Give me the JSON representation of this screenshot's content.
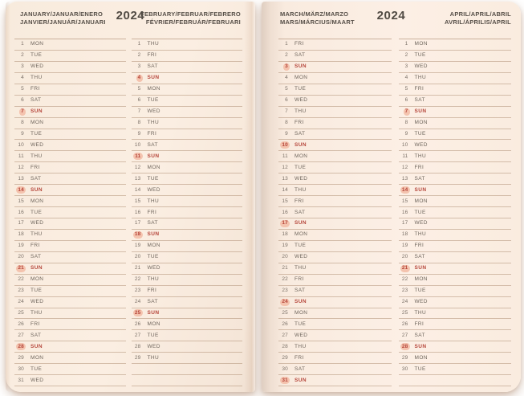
{
  "year": "2024",
  "grid_rows": 31,
  "colors": {
    "page_background": "#fbeee2",
    "ruled_line": "#c3a78f",
    "day_text": "#6e655c",
    "header_text": "#564f48",
    "sunday_red": "#b5453a",
    "sunday_pill": "#f4c3ae"
  },
  "months": [
    {
      "name": "january",
      "title_line1": "JANUARY/JANUAR/ENERO",
      "title_line2": "JANVIER/JANUÁR/JANUARI",
      "days": [
        {
          "n": "1",
          "d": "MON"
        },
        {
          "n": "2",
          "d": "TUE"
        },
        {
          "n": "3",
          "d": "WED"
        },
        {
          "n": "4",
          "d": "THU"
        },
        {
          "n": "5",
          "d": "FRI"
        },
        {
          "n": "6",
          "d": "SAT"
        },
        {
          "n": "7",
          "d": "SUN"
        },
        {
          "n": "8",
          "d": "MON"
        },
        {
          "n": "9",
          "d": "TUE"
        },
        {
          "n": "10",
          "d": "WED"
        },
        {
          "n": "11",
          "d": "THU"
        },
        {
          "n": "12",
          "d": "FRI"
        },
        {
          "n": "13",
          "d": "SAT"
        },
        {
          "n": "14",
          "d": "SUN"
        },
        {
          "n": "15",
          "d": "MON"
        },
        {
          "n": "16",
          "d": "TUE"
        },
        {
          "n": "17",
          "d": "WED"
        },
        {
          "n": "18",
          "d": "THU"
        },
        {
          "n": "19",
          "d": "FRI"
        },
        {
          "n": "20",
          "d": "SAT"
        },
        {
          "n": "21",
          "d": "SUN"
        },
        {
          "n": "22",
          "d": "MON"
        },
        {
          "n": "23",
          "d": "TUE"
        },
        {
          "n": "24",
          "d": "WED"
        },
        {
          "n": "25",
          "d": "THU"
        },
        {
          "n": "26",
          "d": "FRI"
        },
        {
          "n": "27",
          "d": "SAT"
        },
        {
          "n": "28",
          "d": "SUN"
        },
        {
          "n": "29",
          "d": "MON"
        },
        {
          "n": "30",
          "d": "TUE"
        },
        {
          "n": "31",
          "d": "WED"
        }
      ]
    },
    {
      "name": "february",
      "title_line1": "FEBRUARY/FEBRUAR/FEBRERO",
      "title_line2": "FÉVRIER/FEBRUÁR/FEBRUARI",
      "days": [
        {
          "n": "1",
          "d": "THU"
        },
        {
          "n": "2",
          "d": "FRI"
        },
        {
          "n": "3",
          "d": "SAT"
        },
        {
          "n": "4",
          "d": "SUN"
        },
        {
          "n": "5",
          "d": "MON"
        },
        {
          "n": "6",
          "d": "TUE"
        },
        {
          "n": "7",
          "d": "WED"
        },
        {
          "n": "8",
          "d": "THU"
        },
        {
          "n": "9",
          "d": "FRI"
        },
        {
          "n": "10",
          "d": "SAT"
        },
        {
          "n": "11",
          "d": "SUN"
        },
        {
          "n": "12",
          "d": "MON"
        },
        {
          "n": "13",
          "d": "TUE"
        },
        {
          "n": "14",
          "d": "WED"
        },
        {
          "n": "15",
          "d": "THU"
        },
        {
          "n": "16",
          "d": "FRI"
        },
        {
          "n": "17",
          "d": "SAT"
        },
        {
          "n": "18",
          "d": "SUN"
        },
        {
          "n": "19",
          "d": "MON"
        },
        {
          "n": "20",
          "d": "TUE"
        },
        {
          "n": "21",
          "d": "WED"
        },
        {
          "n": "22",
          "d": "THU"
        },
        {
          "n": "23",
          "d": "FRI"
        },
        {
          "n": "24",
          "d": "SAT"
        },
        {
          "n": "25",
          "d": "SUN"
        },
        {
          "n": "26",
          "d": "MON"
        },
        {
          "n": "27",
          "d": "TUE"
        },
        {
          "n": "28",
          "d": "WED"
        },
        {
          "n": "29",
          "d": "THU"
        }
      ]
    },
    {
      "name": "march",
      "title_line1": "MARCH/MÄRZ/MARZO",
      "title_line2": "MARS/MÁRCIUS/MAART",
      "days": [
        {
          "n": "1",
          "d": "FRI"
        },
        {
          "n": "2",
          "d": "SAT"
        },
        {
          "n": "3",
          "d": "SUN"
        },
        {
          "n": "4",
          "d": "MON"
        },
        {
          "n": "5",
          "d": "TUE"
        },
        {
          "n": "6",
          "d": "WED"
        },
        {
          "n": "7",
          "d": "THU"
        },
        {
          "n": "8",
          "d": "FRI"
        },
        {
          "n": "9",
          "d": "SAT"
        },
        {
          "n": "10",
          "d": "SUN"
        },
        {
          "n": "11",
          "d": "MON"
        },
        {
          "n": "12",
          "d": "TUE"
        },
        {
          "n": "13",
          "d": "WED"
        },
        {
          "n": "14",
          "d": "THU"
        },
        {
          "n": "15",
          "d": "FRI"
        },
        {
          "n": "16",
          "d": "SAT"
        },
        {
          "n": "17",
          "d": "SUN"
        },
        {
          "n": "18",
          "d": "MON"
        },
        {
          "n": "19",
          "d": "TUE"
        },
        {
          "n": "20",
          "d": "WED"
        },
        {
          "n": "21",
          "d": "THU"
        },
        {
          "n": "22",
          "d": "FRI"
        },
        {
          "n": "23",
          "d": "SAT"
        },
        {
          "n": "24",
          "d": "SUN"
        },
        {
          "n": "25",
          "d": "MON"
        },
        {
          "n": "26",
          "d": "TUE"
        },
        {
          "n": "27",
          "d": "WED"
        },
        {
          "n": "28",
          "d": "THU"
        },
        {
          "n": "29",
          "d": "FRI"
        },
        {
          "n": "30",
          "d": "SAT"
        },
        {
          "n": "31",
          "d": "SUN"
        }
      ]
    },
    {
      "name": "april",
      "title_line1": "APRIL/APRIL/ABRIL",
      "title_line2": "AVRIL/ÁPRILIS/APRIL",
      "days": [
        {
          "n": "1",
          "d": "MON"
        },
        {
          "n": "2",
          "d": "TUE"
        },
        {
          "n": "3",
          "d": "WED"
        },
        {
          "n": "4",
          "d": "THU"
        },
        {
          "n": "5",
          "d": "FRI"
        },
        {
          "n": "6",
          "d": "SAT"
        },
        {
          "n": "7",
          "d": "SUN"
        },
        {
          "n": "8",
          "d": "MON"
        },
        {
          "n": "9",
          "d": "TUE"
        },
        {
          "n": "10",
          "d": "WED"
        },
        {
          "n": "11",
          "d": "THU"
        },
        {
          "n": "12",
          "d": "FRI"
        },
        {
          "n": "13",
          "d": "SAT"
        },
        {
          "n": "14",
          "d": "SUN"
        },
        {
          "n": "15",
          "d": "MON"
        },
        {
          "n": "16",
          "d": "TUE"
        },
        {
          "n": "17",
          "d": "WED"
        },
        {
          "n": "18",
          "d": "THU"
        },
        {
          "n": "19",
          "d": "FRI"
        },
        {
          "n": "20",
          "d": "SAT"
        },
        {
          "n": "21",
          "d": "SUN"
        },
        {
          "n": "22",
          "d": "MON"
        },
        {
          "n": "23",
          "d": "TUE"
        },
        {
          "n": "24",
          "d": "WED"
        },
        {
          "n": "25",
          "d": "THU"
        },
        {
          "n": "26",
          "d": "FRI"
        },
        {
          "n": "27",
          "d": "SAT"
        },
        {
          "n": "28",
          "d": "SUN"
        },
        {
          "n": "29",
          "d": "MON"
        },
        {
          "n": "30",
          "d": "TUE"
        }
      ]
    }
  ]
}
